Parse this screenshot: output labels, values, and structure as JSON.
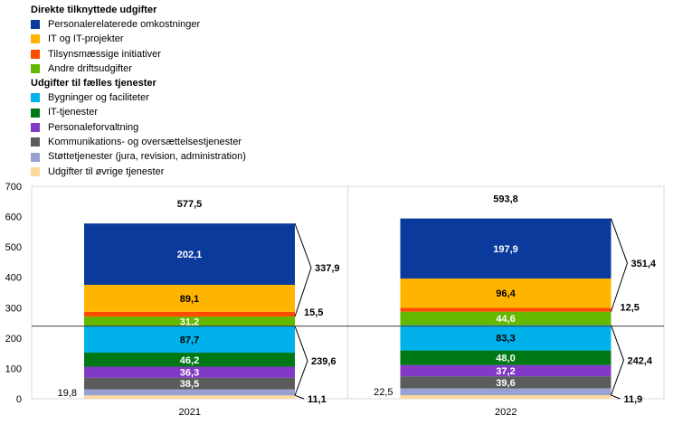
{
  "legend": {
    "groups": [
      {
        "title": "Direkte tilknyttede udgifter",
        "items": [
          {
            "label": "Personalerelaterede omkostninger",
            "color": "#0a3a9b"
          },
          {
            "label": "IT og IT-projekter",
            "color": "#ffb400"
          },
          {
            "label": "Tilsynsmæssige initiativer",
            "color": "#ff4b00"
          },
          {
            "label": "Andre driftsudgifter",
            "color": "#65b800"
          }
        ]
      },
      {
        "title": "Udgifter til fælles tjenester",
        "items": [
          {
            "label": "Bygninger og faciliteter",
            "color": "#00b1ea"
          },
          {
            "label": "IT-tjenester",
            "color": "#007816"
          },
          {
            "label": "Personaleforvaltning",
            "color": "#8139c6"
          },
          {
            "label": "Kommunikations- og oversættelsestjenester",
            "color": "#5c5c5c"
          },
          {
            "label": "Støttetjenester (jura, revision, administration)",
            "color": "#98a1d0"
          },
          {
            "label": "Udgifter til øvrige tjenester",
            "color": "#fdd89f"
          }
        ]
      }
    ]
  },
  "chart_data": {
    "type": "bar",
    "stacked": true,
    "categories": [
      "2021",
      "2022"
    ],
    "ylim": [
      0,
      700
    ],
    "yticks": [
      0,
      100,
      200,
      300,
      400,
      500,
      600,
      700
    ],
    "series": [
      {
        "name": "Udgifter til øvrige tjenester",
        "color": "#fdd89f",
        "values": [
          11.1,
          11.9
        ]
      },
      {
        "name": "Støttetjenester (jura, revision, administration)",
        "color": "#98a1d0",
        "values": [
          19.8,
          22.5
        ]
      },
      {
        "name": "Kommunikations- og oversættelsestjenester",
        "color": "#5c5c5c",
        "values": [
          38.5,
          39.6
        ]
      },
      {
        "name": "Personaleforvaltning",
        "color": "#8139c6",
        "values": [
          36.3,
          37.2
        ]
      },
      {
        "name": "IT-tjenester",
        "color": "#007816",
        "values": [
          46.2,
          48.0
        ]
      },
      {
        "name": "Bygninger og faciliteter",
        "color": "#00b1ea",
        "values": [
          87.7,
          83.3
        ]
      },
      {
        "name": "Andre driftsudgifter",
        "color": "#65b800",
        "values": [
          31.2,
          44.6
        ]
      },
      {
        "name": "Tilsynsmæssige initiativer",
        "color": "#ff4b00",
        "values": [
          15.5,
          12.5
        ]
      },
      {
        "name": "IT og IT-projekter",
        "color": "#ffb400",
        "values": [
          89.1,
          96.4
        ]
      },
      {
        "name": "Personalerelaterede omkostninger",
        "color": "#0a3a9b",
        "values": [
          202.1,
          197.9
        ]
      }
    ],
    "segment_labels": [
      [
        "",
        "",
        "38,5",
        "36,3",
        "46,2",
        "87,7",
        "31,2",
        "",
        "89,1",
        "202,1"
      ],
      [
        "",
        "",
        "39,6",
        "37,2",
        "48,0",
        "83,3",
        "44,6",
        "",
        "96,4",
        "197,9"
      ]
    ],
    "segment_label_colors": [
      "#000",
      "#000",
      "#fff",
      "#fff",
      "#fff",
      "#000",
      "#fff",
      "#000",
      "#000",
      "#fff"
    ],
    "left_labels": [
      {
        "label": "19,8",
        "series": 1
      },
      {
        "label": "22,5",
        "series": 1
      }
    ],
    "totals": [
      "577,5",
      "593,8"
    ],
    "brackets": [
      {
        "direct_label": "337,9",
        "tilsyn_label": "15,5",
        "shared_label": "239,6",
        "other_label": "11,1"
      },
      {
        "direct_label": "351,4",
        "tilsyn_label": "12,5",
        "shared_label": "242,4",
        "other_label": "11,9"
      }
    ]
  }
}
